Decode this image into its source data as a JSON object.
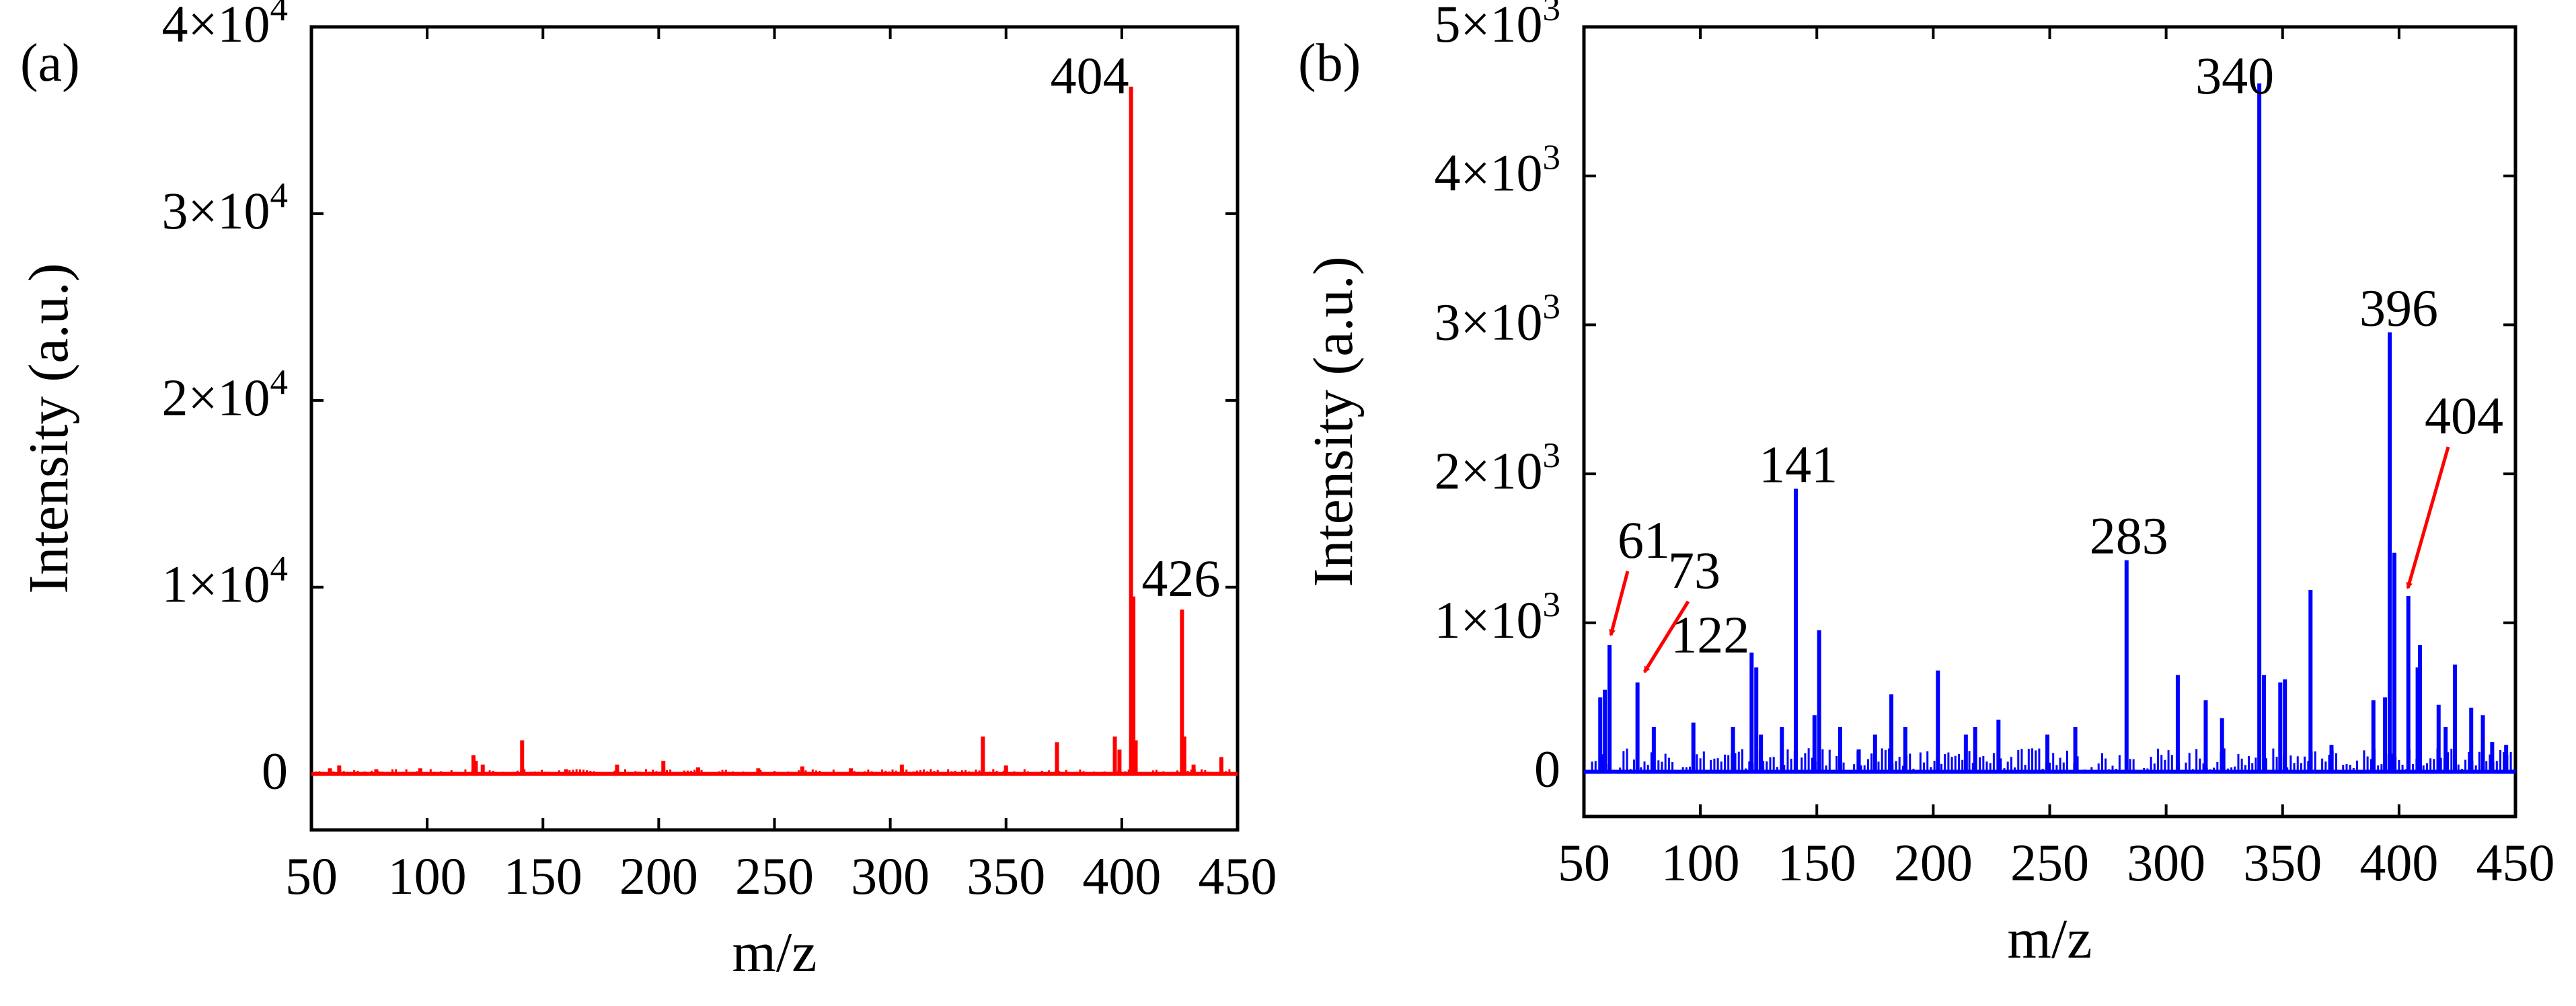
{
  "chart_data": [
    {
      "type": "bar",
      "panel_label": "(a)",
      "title": "",
      "xlabel": "m/z",
      "ylabel": "Intensity (a.u.)",
      "xlim": [
        50,
        450
      ],
      "ylim": [
        -3000,
        40000
      ],
      "xticks": [
        50,
        100,
        150,
        200,
        250,
        300,
        350,
        400,
        450
      ],
      "xtick_labels": [
        "50",
        "100",
        "150",
        "200",
        "250",
        "300",
        "350",
        "400",
        "450"
      ],
      "yticks": [
        {
          "value": 0,
          "mantissa": "0",
          "exponent": ""
        },
        {
          "value": 10000,
          "mantissa": "1×10",
          "exponent": "4"
        },
        {
          "value": 20000,
          "mantissa": "2×10",
          "exponent": "4"
        },
        {
          "value": 30000,
          "mantissa": "3×10",
          "exponent": "4"
        },
        {
          "value": 40000,
          "mantissa": "4×10",
          "exponent": "4"
        }
      ],
      "color": "#ff0000",
      "series": [
        {
          "name": "spectrum",
          "peaks": [
            [
              58,
              300
            ],
            [
              62,
              450
            ],
            [
              78,
              250
            ],
            [
              97,
              300
            ],
            [
              120,
              1000
            ],
            [
              121,
              700
            ],
            [
              124,
              500
            ],
            [
              141,
              1800
            ],
            [
              160,
              250
            ],
            [
              182,
              500
            ],
            [
              202,
              700
            ],
            [
              217,
              350
            ],
            [
              243,
              300
            ],
            [
              262,
              400
            ],
            [
              283,
              300
            ],
            [
              305,
              500
            ],
            [
              340,
              2000
            ],
            [
              350,
              450
            ],
            [
              372,
              1700
            ],
            [
              397,
              2000
            ],
            [
              399,
              1300
            ],
            [
              404,
              36800
            ],
            [
              405,
              9500
            ],
            [
              406,
              1800
            ],
            [
              426,
              8800
            ],
            [
              427,
              2000
            ],
            [
              431,
              500
            ],
            [
              443,
              900
            ]
          ]
        }
      ],
      "annotations": [
        {
          "text": "404",
          "x": 404,
          "y": 36800
        },
        {
          "text": "426",
          "x": 426,
          "y": 8800
        }
      ]
    },
    {
      "type": "bar",
      "panel_label": "(b)",
      "title": "",
      "xlabel": "m/z",
      "ylabel": "Intensity (a.u.)",
      "xlim": [
        50,
        450
      ],
      "ylim": [
        -300,
        5000
      ],
      "xticks": [
        50,
        100,
        150,
        200,
        250,
        300,
        350,
        400,
        450
      ],
      "xtick_labels": [
        "50",
        "100",
        "150",
        "200",
        "250",
        "300",
        "350",
        "400",
        "450"
      ],
      "yticks": [
        {
          "value": 0,
          "mantissa": "0",
          "exponent": ""
        },
        {
          "value": 1000,
          "mantissa": "1×10",
          "exponent": "3"
        },
        {
          "value": 2000,
          "mantissa": "2×10",
          "exponent": "3"
        },
        {
          "value": 3000,
          "mantissa": "3×10",
          "exponent": "3"
        },
        {
          "value": 4000,
          "mantissa": "4×10",
          "exponent": "3"
        },
        {
          "value": 5000,
          "mantissa": "5×10",
          "exponent": "3"
        }
      ],
      "color": "#0000ff",
      "series": [
        {
          "name": "spectrum",
          "peaks": [
            [
              57,
              500
            ],
            [
              59,
              550
            ],
            [
              61,
              850
            ],
            [
              73,
              600
            ],
            [
              80,
              300
            ],
            [
              97,
              330
            ],
            [
              114,
              300
            ],
            [
              122,
              800
            ],
            [
              124,
              700
            ],
            [
              126,
              250
            ],
            [
              135,
              300
            ],
            [
              141,
              1900
            ],
            [
              149,
              380
            ],
            [
              151,
              950
            ],
            [
              160,
              300
            ],
            [
              168,
              150
            ],
            [
              175,
              250
            ],
            [
              182,
              520
            ],
            [
              188,
              300
            ],
            [
              202,
              680
            ],
            [
              214,
              250
            ],
            [
              218,
              300
            ],
            [
              228,
              350
            ],
            [
              249,
              250
            ],
            [
              261,
              300
            ],
            [
              283,
              1420
            ],
            [
              305,
              650
            ],
            [
              317,
              480
            ],
            [
              324,
              360
            ],
            [
              340,
              4620
            ],
            [
              342,
              650
            ],
            [
              349,
              600
            ],
            [
              351,
              620
            ],
            [
              362,
              1220
            ],
            [
              371,
              180
            ],
            [
              389,
              480
            ],
            [
              394,
              500
            ],
            [
              396,
              2950
            ],
            [
              398,
              1470
            ],
            [
              404,
              1180
            ],
            [
              408,
              700
            ],
            [
              409,
              850
            ],
            [
              417,
              450
            ],
            [
              420,
              300
            ],
            [
              424,
              720
            ],
            [
              431,
              430
            ],
            [
              436,
              380
            ],
            [
              440,
              200
            ],
            [
              446,
              180
            ]
          ]
        }
      ],
      "annotations": [
        {
          "text": "340",
          "x": 340,
          "y": 4620
        },
        {
          "text": "396",
          "x": 396,
          "y": 2950
        },
        {
          "text": "283",
          "x": 283,
          "y": 1420
        },
        {
          "text": "141",
          "x": 141,
          "y": 1900
        },
        {
          "text": "122",
          "x": 122,
          "y": 800
        },
        {
          "text": "61",
          "x": 61,
          "y": 850,
          "arrow": true
        },
        {
          "text": "73",
          "x": 73,
          "y": 600,
          "arrow": true
        },
        {
          "text": "404",
          "x": 404,
          "y": 1180,
          "arrow": true
        }
      ]
    }
  ]
}
